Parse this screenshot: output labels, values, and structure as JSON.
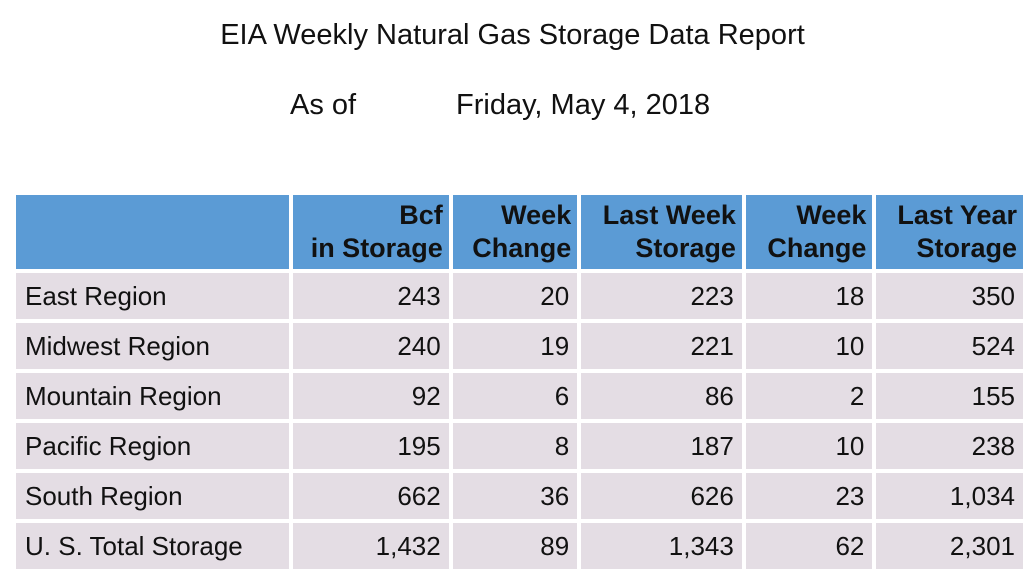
{
  "title": "EIA Weekly Natural Gas Storage Data Report",
  "as_of": {
    "label": "As of",
    "date": "Friday, May 4, 2018"
  },
  "table": {
    "headers": [
      [
        "",
        ""
      ],
      [
        "Bcf",
        "in Storage"
      ],
      [
        "Week",
        "Change"
      ],
      [
        "Last Week",
        "Storage"
      ],
      [
        "Week",
        "Change"
      ],
      [
        "Last Year",
        "Storage"
      ]
    ],
    "rows": [
      [
        "East Region",
        "243",
        "20",
        "223",
        "18",
        "350"
      ],
      [
        "Midwest Region",
        "240",
        "19",
        "221",
        "10",
        "524"
      ],
      [
        "Mountain Region",
        "92",
        "6",
        "86",
        "2",
        "155"
      ],
      [
        "Pacific Region",
        "195",
        "8",
        "187",
        "10",
        "238"
      ],
      [
        "South Region",
        "662",
        "36",
        "626",
        "23",
        "1,034"
      ],
      [
        "U. S. Total Storage",
        "1,432",
        "89",
        "1,343",
        "62",
        "2,301"
      ]
    ]
  },
  "colors": {
    "header_bg": "#5b9bd5",
    "cell_bg": "#e4dde4"
  }
}
